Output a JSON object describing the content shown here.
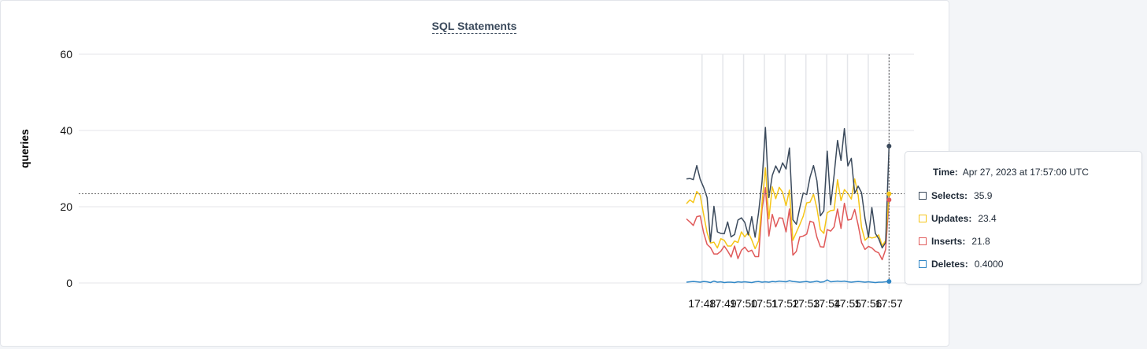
{
  "chart_data": {
    "type": "line",
    "title": "SQL Statements",
    "ylabel": "queries",
    "xlabel": "",
    "ylim": [
      0,
      60
    ],
    "yticks": [
      "0",
      "20",
      "40",
      "60"
    ],
    "xtick_labels": [
      "17:48",
      "17:49",
      "17:50",
      "17:51",
      "17:52",
      "17:53",
      "17:54",
      "17:55",
      "17:56",
      "17:57"
    ],
    "xrange_minutes": [
      17.3,
      17.97
    ],
    "grid": true,
    "series": [
      {
        "name": "Selects",
        "color": "#3b4a5c",
        "values": [
          27.3,
          27.4,
          27.1,
          30.8,
          27.2,
          25.1,
          22.4,
          10.8,
          20.1,
          13.4,
          13.0,
          12.9,
          16.0,
          12.1,
          12.7,
          16.5,
          17.1,
          15.9,
          12.6,
          17.4,
          12.0,
          18.5,
          26.6,
          40.8,
          22.4,
          28.2,
          30.7,
          28.9,
          31.5,
          29.9,
          35.4,
          16.6,
          15.4,
          19.7,
          23.6,
          23.2,
          27.8,
          30.8,
          26.8,
          17.6,
          18.9,
          34.6,
          20.5,
          28.2,
          37.4,
          32.1,
          40.5,
          30.7,
          32.7,
          23.5,
          25.4,
          23.7,
          16.9,
          12.0,
          19.8,
          13.0,
          11.6,
          9.2,
          10.6,
          35.9
        ]
      },
      {
        "name": "Updates",
        "color": "#f5c518",
        "values": [
          20.8,
          21.8,
          21.1,
          24.0,
          23.0,
          18.0,
          13.2,
          10.5,
          10.7,
          9.2,
          11.6,
          11.2,
          9.7,
          9.7,
          11.0,
          10.6,
          13.4,
          12.1,
          13.3,
          11.3,
          9.0,
          11.0,
          21.0,
          30.2,
          16.8,
          25.2,
          22.1,
          25.1,
          23.8,
          20.3,
          24.4,
          11.2,
          13.3,
          15.3,
          17.5,
          21.0,
          21.2,
          23.3,
          19.6,
          14.0,
          13.0,
          18.4,
          19.0,
          19.1,
          27.1,
          21.6,
          24.5,
          23.5,
          22.0,
          27.3,
          23.0,
          14.6,
          11.2,
          12.1,
          11.8,
          12.0,
          12.6,
          9.8,
          11.1,
          23.4
        ]
      },
      {
        "name": "Inserts",
        "color": "#e05a5a",
        "values": [
          16.8,
          16.0,
          15.1,
          17.4,
          17.6,
          13.2,
          10.1,
          9.3,
          7.6,
          7.6,
          8.3,
          9.7,
          8.4,
          6.8,
          9.7,
          6.4,
          8.6,
          9.4,
          8.2,
          8.6,
          6.9,
          6.9,
          19.4,
          25.0,
          12.3,
          18.0,
          14.7,
          17.1,
          17.0,
          13.4,
          19.4,
          7.3,
          8.3,
          12.1,
          12.3,
          12.8,
          16.2,
          15.9,
          12.0,
          9.5,
          9.4,
          14.0,
          13.6,
          14.7,
          19.4,
          14.3,
          20.9,
          16.5,
          16.7,
          19.3,
          15.2,
          10.6,
          8.8,
          9.6,
          9.2,
          8.3,
          7.9,
          6.1,
          8.8,
          21.8
        ]
      },
      {
        "name": "Deletes",
        "color": "#2f86c6",
        "values": [
          0.2,
          0.3,
          0.4,
          0.3,
          0.2,
          0.4,
          0.3,
          0.1,
          0.5,
          0.2,
          0.3,
          0.1,
          0.2,
          0.2,
          0.1,
          0.3,
          0.2,
          0.3,
          0.2,
          0.1,
          0.3,
          0.4,
          0.2,
          0.3,
          0.2,
          0.4,
          0.3,
          0.5,
          0.4,
          0.3,
          0.6,
          0.4,
          0.3,
          0.2,
          0.3,
          0.4,
          0.2,
          0.3,
          0.5,
          0.2,
          0.3,
          0.8,
          0.3,
          0.4,
          0.5,
          0.4,
          0.5,
          0.3,
          0.2,
          0.3,
          0.4,
          0.3,
          0.2,
          0.3,
          0.2,
          0.1,
          0.2,
          0.2,
          0.3,
          0.4
        ]
      }
    ],
    "crosshair_y": 23.4
  },
  "tooltip": {
    "time_label": "Time:",
    "time_value": "Apr 27, 2023 at 17:57:00 UTC",
    "rows": [
      {
        "label": "Selects:",
        "value": "35.9",
        "color": "#3b4a5c"
      },
      {
        "label": "Updates:",
        "value": "23.4",
        "color": "#f5c518"
      },
      {
        "label": "Inserts:",
        "value": "21.8",
        "color": "#e05a5a"
      },
      {
        "label": "Deletes:",
        "value": "0.4000",
        "color": "#2f86c6"
      }
    ]
  }
}
